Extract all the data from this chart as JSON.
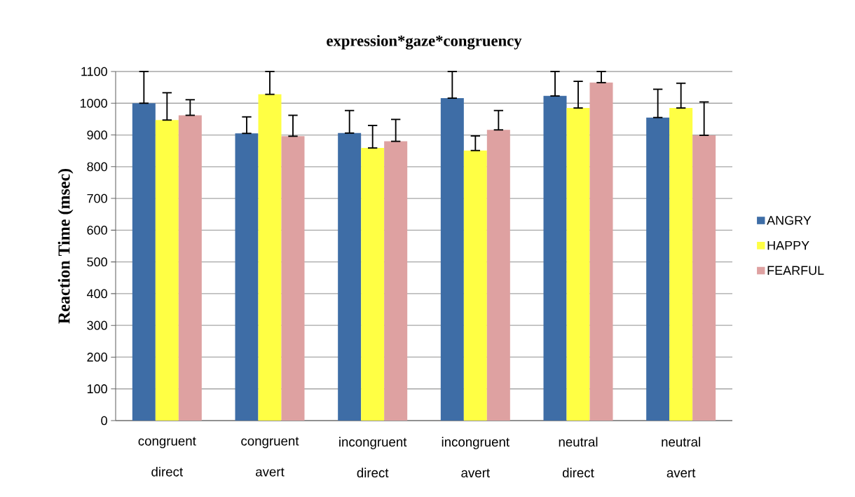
{
  "chart_data": {
    "type": "bar",
    "title": "expression*gaze*congruency",
    "ylabel": "Reaction Time (msec)",
    "categories": [
      "congruent direct",
      "congruent avert",
      "incongruent direct",
      "incongruent avert",
      "neutral direct",
      "neutral avert"
    ],
    "series": [
      {
        "name": "ANGRY",
        "color": "#3e6da6",
        "values": [
          1000,
          905,
          906,
          1016,
          1023,
          955
        ],
        "errors": [
          [
            1000,
            1100
          ],
          [
            905,
            957
          ],
          [
            906,
            977
          ],
          [
            1016,
            1100
          ],
          [
            1023,
            1100
          ],
          [
            955,
            1044
          ]
        ]
      },
      {
        "name": "HAPPY",
        "color": "#ffff44",
        "values": [
          947,
          1028,
          859,
          851,
          985,
          985
        ],
        "errors": [
          [
            947,
            1033
          ],
          [
            1028,
            1100
          ],
          [
            859,
            930
          ],
          [
            851,
            897
          ],
          [
            985,
            1069
          ],
          [
            985,
            1063
          ]
        ]
      },
      {
        "name": "FEARFUL",
        "color": "#dea1a1",
        "values": [
          962,
          896,
          880,
          916,
          1065,
          899
        ],
        "errors": [
          [
            962,
            1011
          ],
          [
            896,
            962
          ],
          [
            880,
            949
          ],
          [
            916,
            977
          ],
          [
            1065,
            1100
          ],
          [
            899,
            1004
          ]
        ]
      }
    ],
    "ylim": [
      0,
      1100
    ],
    "yticks": [
      0,
      100,
      200,
      300,
      400,
      500,
      600,
      700,
      800,
      900,
      1000,
      1100
    ],
    "grid": "y",
    "legend": "right"
  }
}
